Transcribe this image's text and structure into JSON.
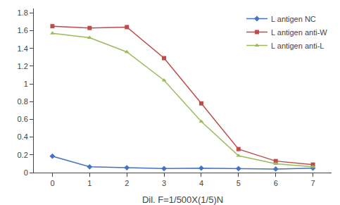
{
  "chart_data": {
    "type": "line",
    "x": [
      0,
      1,
      2,
      3,
      4,
      5,
      6,
      7
    ],
    "series": [
      {
        "name": "L antigen NC",
        "color": "#4472C4",
        "marker": "diamond",
        "values": [
          0.185,
          0.065,
          0.055,
          0.045,
          0.05,
          0.045,
          0.04,
          0.05
        ]
      },
      {
        "name": "L antigen anti-W",
        "color": "#BE4B48",
        "marker": "square",
        "values": [
          1.65,
          1.63,
          1.64,
          1.29,
          0.78,
          0.265,
          0.13,
          0.09
        ]
      },
      {
        "name": "L antigen anti-L",
        "color": "#9BBB59",
        "marker": "triangle-up",
        "values": [
          1.57,
          1.52,
          1.36,
          1.04,
          0.575,
          0.19,
          0.1,
          0.065
        ]
      }
    ],
    "x_label": "Dil. F=1/500X(1/5)N",
    "xlim": [
      -0.5,
      7.5
    ],
    "xticks": [
      0,
      1,
      2,
      3,
      4,
      5,
      6,
      7
    ],
    "ylim": [
      0.0,
      1.85
    ],
    "yticks": [
      0.0,
      0.2,
      0.4,
      0.6,
      0.8,
      1.0,
      1.2,
      1.4,
      1.6,
      1.8
    ],
    "grid": false,
    "legend": "upper right"
  }
}
